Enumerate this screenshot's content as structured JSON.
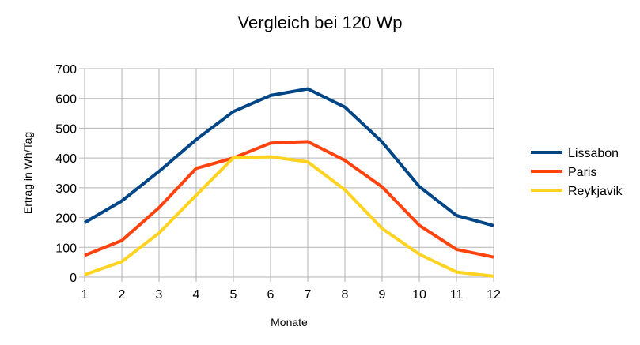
{
  "chart_data": {
    "type": "line",
    "title": "Vergleich bei 120 Wp",
    "xlabel": "Monate",
    "ylabel": "Ertrag in Wh/Tag",
    "x": [
      1,
      2,
      3,
      4,
      5,
      6,
      7,
      8,
      9,
      10,
      11,
      12
    ],
    "ylim": [
      0,
      700
    ],
    "yticks": [
      0,
      100,
      200,
      300,
      400,
      500,
      600,
      700
    ],
    "grid": true,
    "legend_position": "right",
    "series": [
      {
        "name": "Lissabon",
        "color": "#004586",
        "values": [
          183,
          256,
          355,
          462,
          556,
          610,
          632,
          571,
          454,
          304,
          207,
          173
        ]
      },
      {
        "name": "Paris",
        "color": "#ff420e",
        "values": [
          73,
          123,
          233,
          365,
          400,
          450,
          455,
          392,
          303,
          174,
          93,
          67
        ]
      },
      {
        "name": "Reykjavik",
        "color": "#ffd320",
        "values": [
          8,
          52,
          148,
          275,
          401,
          404,
          387,
          293,
          163,
          77,
          17,
          3
        ]
      }
    ]
  }
}
